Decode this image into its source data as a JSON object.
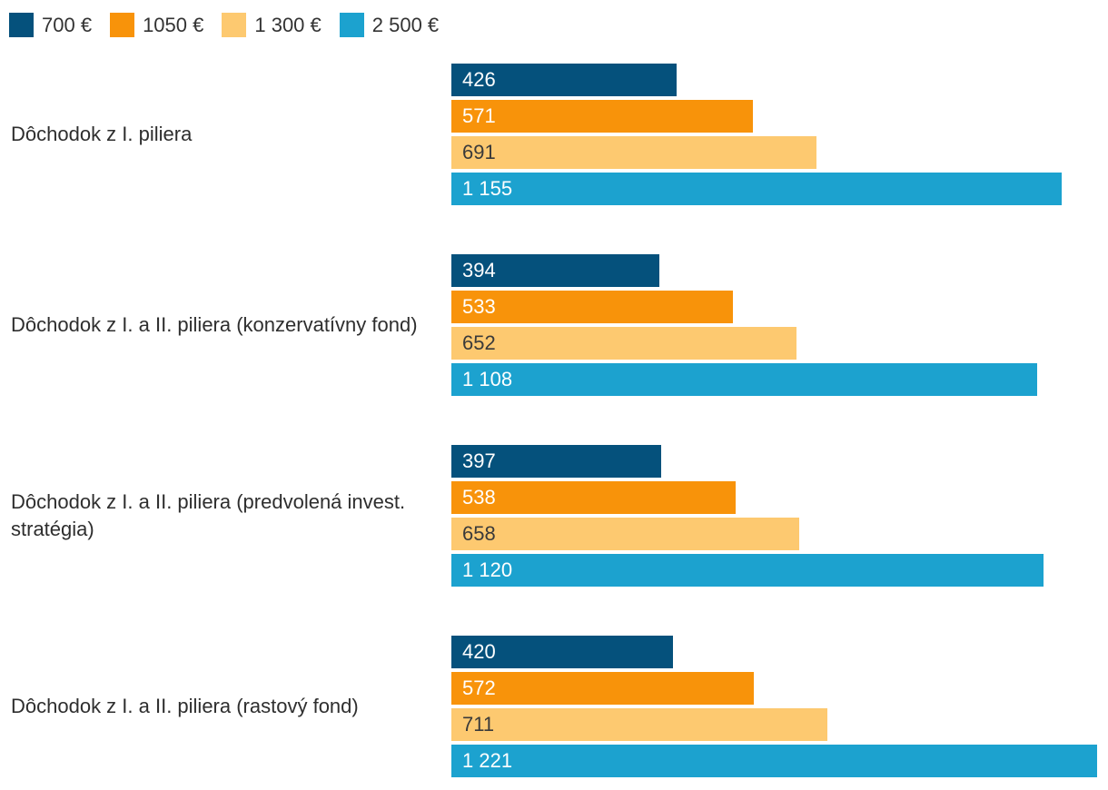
{
  "background": "#FFFFFF",
  "text_color": "#333333",
  "chart_data": {
    "type": "bar",
    "orientation": "horizontal",
    "title": "",
    "legend_position": "top",
    "grid": false,
    "value_labels": "inside-left",
    "xlim": [
      0,
      1242
    ],
    "categories": [
      "Dôchodok z I. piliera",
      "Dôchodok z I. a II. piliera (konzervatívny fond)",
      "Dôchodok z I. a II. piliera (predvolená invest. stratégia)",
      "Dôchodok z I. a II. piliera (rastový fond)"
    ],
    "series": [
      {
        "name": "700 €",
        "color": "#05517C",
        "label_color": "#FFFFFF",
        "values": [
          426,
          394,
          397,
          420
        ],
        "labels": [
          "426",
          "394",
          "397",
          "420"
        ]
      },
      {
        "name": "1050 €",
        "color": "#F8930A",
        "label_color": "#FFFFFF",
        "values": [
          571,
          533,
          538,
          572
        ],
        "labels": [
          "571",
          "533",
          "538",
          "572"
        ]
      },
      {
        "name": "1 300 €",
        "color": "#FDC970",
        "label_color": "#3A3A3A",
        "values": [
          691,
          652,
          658,
          711
        ],
        "labels": [
          "691",
          "652",
          "658",
          "711"
        ]
      },
      {
        "name": "2 500 €",
        "color": "#1CA2CF",
        "label_color": "#FFFFFF",
        "values": [
          1155,
          1108,
          1120,
          1221
        ],
        "labels": [
          "1 155",
          "1 108",
          "1 120",
          "1 221"
        ]
      }
    ]
  }
}
